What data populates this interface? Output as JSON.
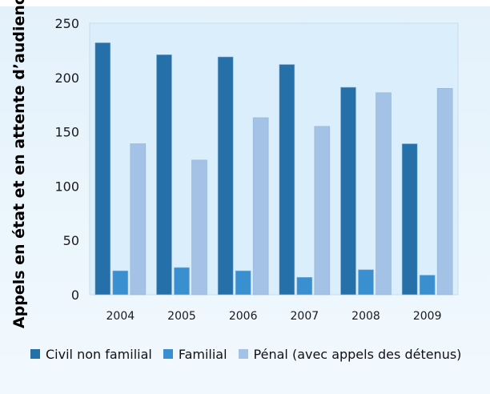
{
  "chart_data": {
    "type": "bar",
    "title": "",
    "xlabel": "",
    "ylabel": "Appels en état et en attente d’audience",
    "categories": [
      "2004",
      "2005",
      "2006",
      "2007",
      "2008",
      "2009"
    ],
    "series": [
      {
        "name": "Civil non familial",
        "color": "#2670aa",
        "values": [
          232,
          221,
          219,
          212,
          191,
          139
        ]
      },
      {
        "name": "Familial",
        "color": "#3a8fd0",
        "values": [
          22,
          25,
          22,
          16,
          23,
          18
        ]
      },
      {
        "name": "Pénal (avec appels des détenus)",
        "color": "#a3c2e6",
        "values": [
          139,
          124,
          163,
          155,
          186,
          190
        ]
      }
    ],
    "ylim": [
      0,
      250
    ],
    "yticks": [
      0,
      50,
      100,
      150,
      200,
      250
    ],
    "grid": false,
    "legend_position": "bottom"
  }
}
